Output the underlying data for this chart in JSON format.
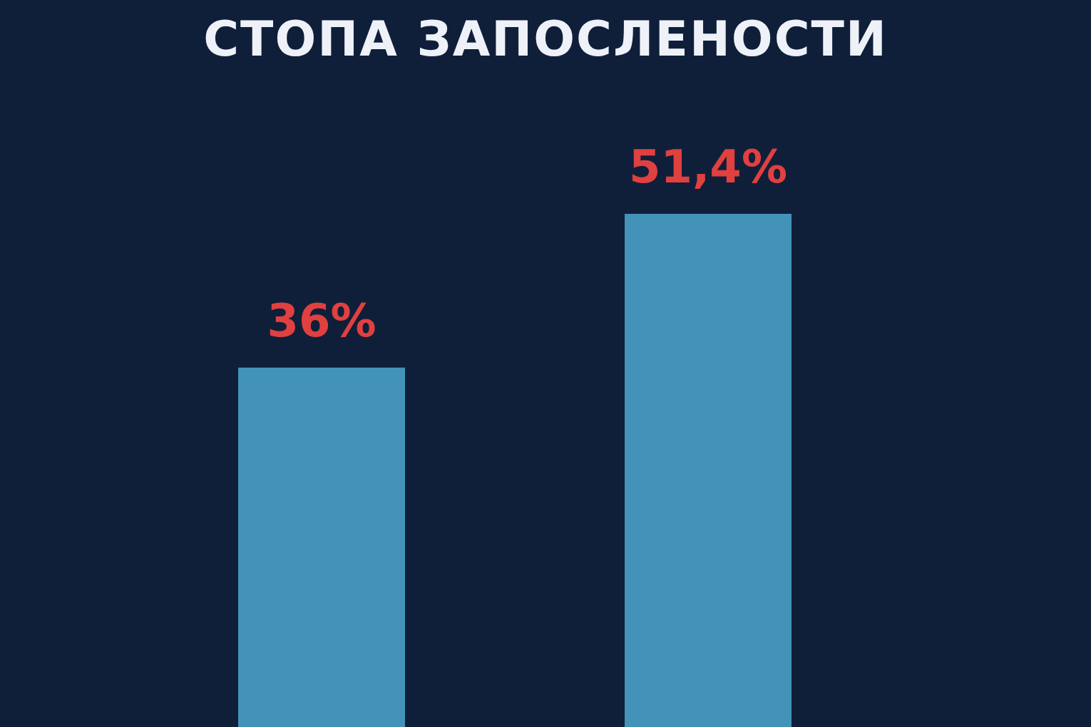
{
  "chart_data": {
    "type": "bar",
    "title": "СТОПА ЗАПОСЛЕНОСТИ",
    "categories": [
      null,
      null
    ],
    "series": [
      {
        "color": "#4393b8",
        "values": [
          36,
          51.4
        ],
        "value_labels": [
          "36%",
          "51,4%"
        ]
      }
    ]
  }
}
